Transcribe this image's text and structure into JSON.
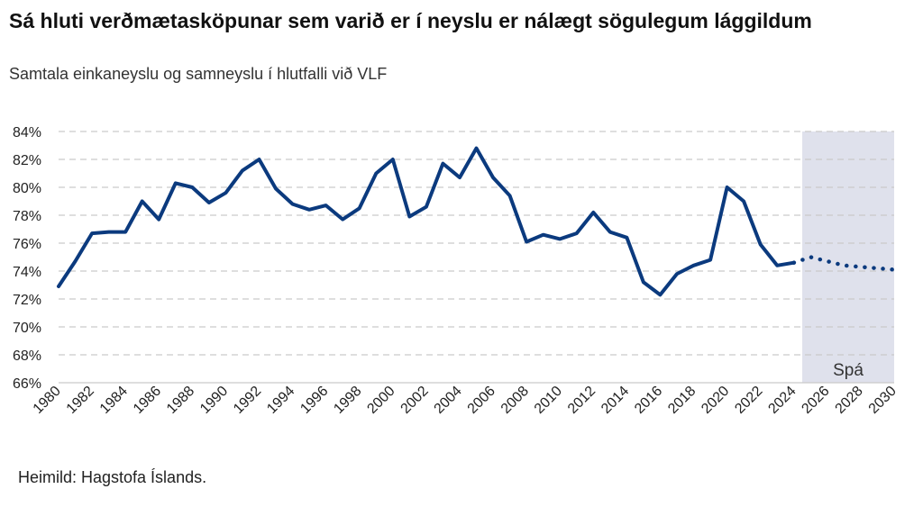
{
  "chart_data": {
    "type": "line",
    "title": "Sá hluti verðmætasköpunar sem varið er í neyslu er nálægt sögulegum lággildum",
    "subtitle": "Samtala einkaneyslu og samneyslu í hlutfalli við VLF",
    "source": "Heimild: Hagstofa Íslands.",
    "forecast_label": "Spá",
    "forecast_range": [
      2024.5,
      2030
    ],
    "xlim": [
      1980,
      2030
    ],
    "ylim": [
      66,
      84
    ],
    "y_ticks": [
      66,
      68,
      70,
      72,
      74,
      76,
      78,
      80,
      82,
      84
    ],
    "y_tick_labels": [
      "66%",
      "68%",
      "70%",
      "72%",
      "74%",
      "76%",
      "78%",
      "80%",
      "82%",
      "84%"
    ],
    "x_ticks": [
      1980,
      1982,
      1984,
      1986,
      1988,
      1990,
      1992,
      1994,
      1996,
      1998,
      2000,
      2002,
      2004,
      2006,
      2008,
      2010,
      2012,
      2014,
      2016,
      2018,
      2020,
      2022,
      2024,
      2026,
      2028,
      2030
    ],
    "x_tick_labels": [
      "1980",
      "1982",
      "1984",
      "1986",
      "1988",
      "1990",
      "1992",
      "1994",
      "1996",
      "1998",
      "2000",
      "2002",
      "2004",
      "2006",
      "2008",
      "2010",
      "2012",
      "2014",
      "2016",
      "2018",
      "2020",
      "2022",
      "2024",
      "2026",
      "2028",
      "2030"
    ],
    "grid": "horizontal-dashed",
    "color": "#0b3a7e",
    "forecast_shade": "#dfe1ec",
    "series": [
      {
        "style": "solid",
        "x": [
          1980,
          1981,
          1982,
          1983,
          1984,
          1985,
          1986,
          1987,
          1988,
          1989,
          1990,
          1991,
          1992,
          1993,
          1994,
          1995,
          1996,
          1997,
          1998,
          1999,
          2000,
          2001,
          2002,
          2003,
          2004,
          2005,
          2006,
          2007,
          2008,
          2009,
          2010,
          2011,
          2012,
          2013,
          2014,
          2015,
          2016,
          2017,
          2018,
          2019,
          2020,
          2021,
          2022,
          2023,
          2024
        ],
        "y": [
          72.9,
          74.7,
          76.7,
          76.8,
          76.8,
          79.0,
          77.7,
          80.3,
          80.0,
          78.9,
          79.6,
          81.2,
          82.0,
          79.9,
          78.8,
          78.4,
          78.7,
          77.7,
          78.5,
          81.0,
          82.0,
          77.9,
          78.6,
          81.7,
          80.7,
          82.8,
          80.7,
          79.4,
          76.1,
          76.6,
          76.3,
          76.7,
          78.2,
          76.8,
          76.4,
          73.2,
          72.3,
          73.8,
          74.4,
          74.8,
          80.0,
          79.0,
          75.9,
          74.4,
          74.6
        ]
      },
      {
        "style": "dotted",
        "x": [
          2024,
          2025,
          2026,
          2027,
          2028,
          2029,
          2030
        ],
        "y": [
          74.6,
          75.0,
          74.7,
          74.4,
          74.3,
          74.2,
          74.1
        ]
      }
    ]
  }
}
